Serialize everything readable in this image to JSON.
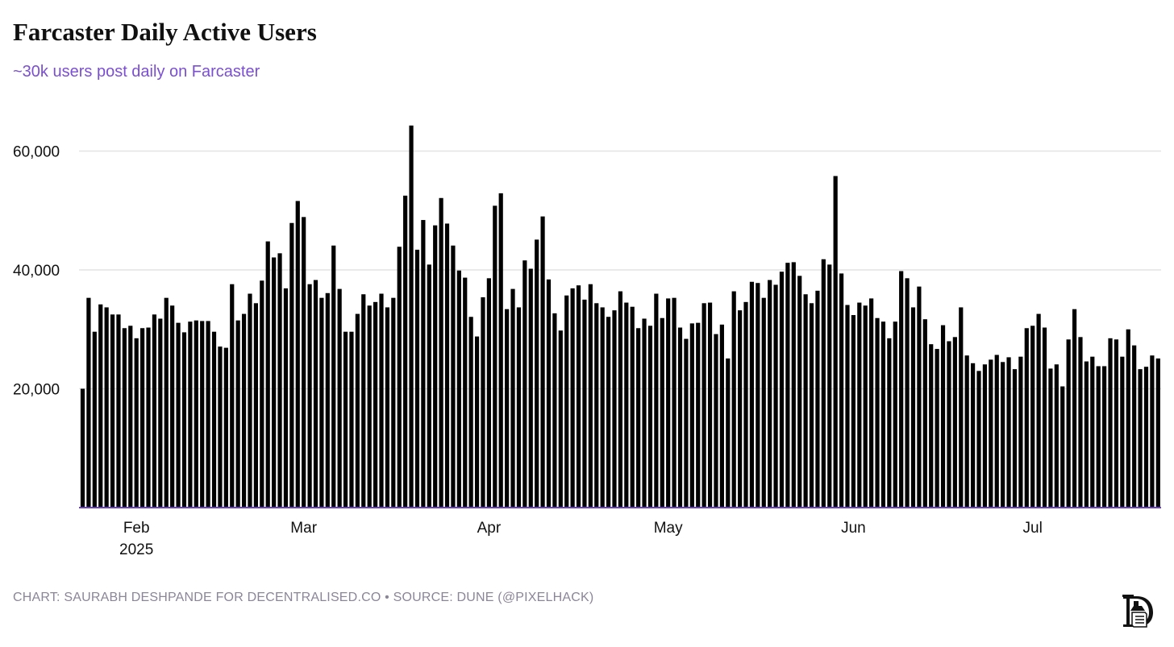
{
  "title": "Farcaster Daily Active Users",
  "subtitle": "~30k users post daily on Farcaster",
  "footer": "CHART: SAURABH DESHPANDE FOR DECENTRALISED.CO • SOURCE: DUNE (@PIXELHACK)",
  "colors": {
    "bar": "#000000",
    "accent": "#7b4fd1",
    "baseline": "#6a3fc4",
    "grid": "#e3e3e3",
    "footer": "#8b8598"
  },
  "chart_data": {
    "type": "bar",
    "title": "Farcaster Daily Active Users",
    "xlabel": "",
    "ylabel": "",
    "start_date": "2025-01-23",
    "end_date": "2025-07-22",
    "ylim": [
      0,
      65000
    ],
    "grid": true,
    "y_ticks": [
      {
        "value": 20000,
        "label": "20,000"
      },
      {
        "value": 40000,
        "label": "40,000"
      },
      {
        "value": 60000,
        "label": "60,000"
      }
    ],
    "x_ticks": [
      {
        "index": 9,
        "label": "Feb",
        "sublabel": "2025"
      },
      {
        "index": 37,
        "label": "Mar"
      },
      {
        "index": 68,
        "label": "Apr"
      },
      {
        "index": 98,
        "label": "May"
      },
      {
        "index": 129,
        "label": "Jun"
      },
      {
        "index": 159,
        "label": "Jul"
      }
    ],
    "values": [
      20000,
      35300,
      29600,
      34200,
      33700,
      32500,
      32500,
      30200,
      30600,
      28500,
      30200,
      30300,
      32500,
      31800,
      35300,
      34000,
      31100,
      29500,
      31300,
      31500,
      31400,
      31400,
      29600,
      27100,
      26900,
      37600,
      31500,
      32600,
      36000,
      34400,
      38200,
      44800,
      42100,
      42800,
      36900,
      47900,
      51600,
      48900,
      37600,
      38300,
      35300,
      36100,
      44100,
      36800,
      29600,
      29600,
      32600,
      35900,
      34000,
      34600,
      36000,
      33700,
      35300,
      43900,
      52500,
      64300,
      43400,
      48400,
      40900,
      47500,
      52100,
      47800,
      44100,
      39900,
      38700,
      32100,
      28800,
      35400,
      38600,
      50800,
      52900,
      33400,
      36800,
      33700,
      41600,
      40200,
      45100,
      49000,
      38400,
      32700,
      29800,
      35700,
      36900,
      37400,
      35000,
      37600,
      34400,
      33700,
      32100,
      33200,
      36400,
      34500,
      33800,
      30200,
      31800,
      30600,
      36000,
      31900,
      35200,
      35300,
      30300,
      28400,
      31000,
      31100,
      34400,
      34500,
      29200,
      30800,
      25100,
      36400,
      33200,
      34600,
      38000,
      37800,
      35300,
      38300,
      37500,
      39700,
      41200,
      41300,
      39000,
      35900,
      34400,
      36500,
      41800,
      40900,
      55800,
      39400,
      34100,
      32400,
      34500,
      34000,
      35200,
      31900,
      31300,
      28500,
      31300,
      39800,
      38600,
      33700,
      37200,
      31700,
      27500,
      26700,
      30700,
      28000,
      28700,
      33700,
      25600,
      24300,
      23000,
      24100,
      24900,
      25700,
      24500,
      25300,
      23300,
      25400,
      30200,
      30600,
      32600,
      30300,
      23400,
      24100,
      20400,
      28300,
      33400,
      28700,
      24600,
      25400,
      23800,
      23800,
      28500,
      28300,
      25400,
      30000,
      27300,
      23300,
      23700,
      25600,
      25100
    ]
  }
}
